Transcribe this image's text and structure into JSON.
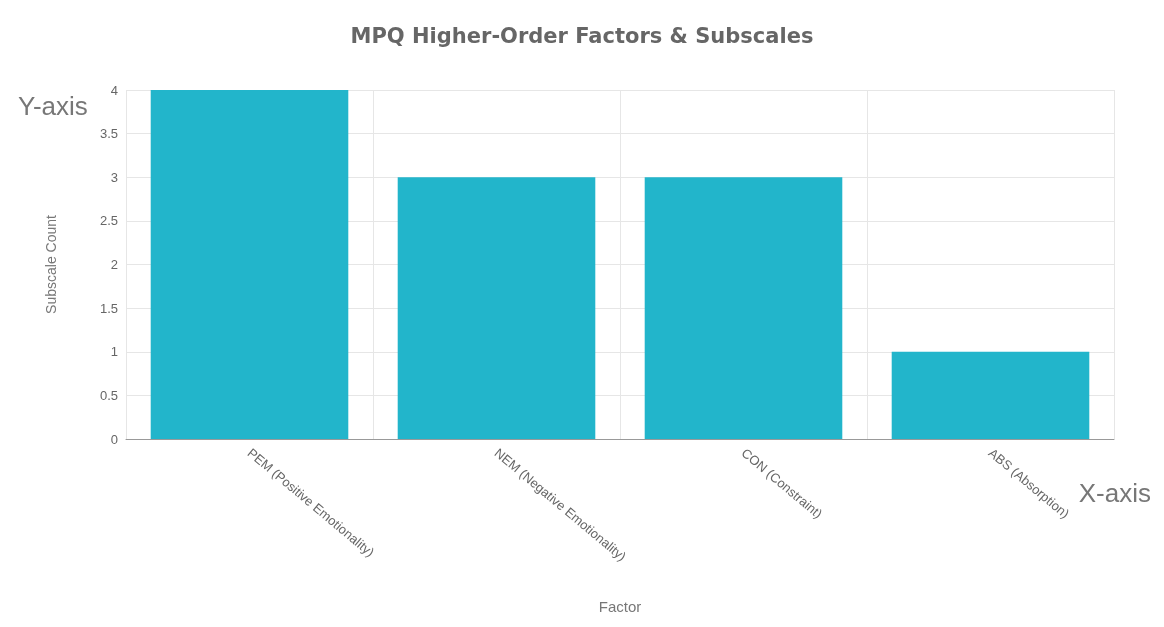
{
  "chart_data": {
    "type": "bar",
    "title": "MPQ Higher-Order Factors & Subscales",
    "xlabel": "Factor",
    "ylabel": "Subscale Count",
    "categories": [
      "PEM (Positive Emotionality)",
      "NEM (Negative Emotionality)",
      "CON (Constraint)",
      "ABS (Absorption)"
    ],
    "values": [
      4,
      3,
      3,
      1
    ],
    "color": "#22b5cb",
    "ylim": [
      0,
      4
    ],
    "yticks": [
      0,
      0.5,
      1,
      1.5,
      2,
      2.5,
      3,
      3.5,
      4
    ],
    "grid": true,
    "annotations": [
      "Y-axis",
      "X-axis"
    ]
  }
}
